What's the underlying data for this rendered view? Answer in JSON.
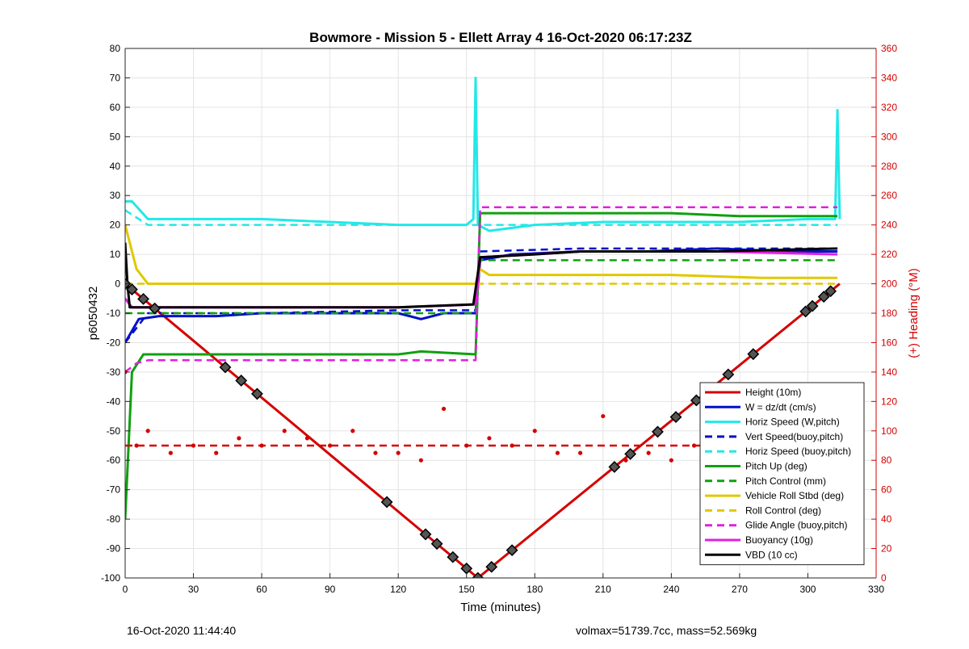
{
  "chart_data": {
    "type": "line",
    "title": "Bowmore - Mission 5 - Ellett Array 4 16-Oct-2020 06:17:23Z",
    "xlabel": "Time (minutes)",
    "ylabel": "p6050432",
    "y2label": "(+) Heading (°M)",
    "xlim": [
      0,
      330
    ],
    "ylim": [
      -100,
      80
    ],
    "y2lim": [
      0,
      360
    ],
    "xticks": [
      "0",
      "30",
      "60",
      "90",
      "120",
      "150",
      "180",
      "210",
      "240",
      "270",
      "300",
      "330"
    ],
    "yticks": [
      "80",
      "70",
      "60",
      "50",
      "40",
      "30",
      "20",
      "10",
      "0",
      "-10",
      "-20",
      "-30",
      "-40",
      "-50",
      "-60",
      "-70",
      "-80",
      "-90",
      "-100"
    ],
    "y2ticks": [
      "360",
      "340",
      "320",
      "300",
      "280",
      "260",
      "240",
      "220",
      "200",
      "180",
      "160",
      "140",
      "120",
      "100",
      "80",
      "60",
      "40",
      "20",
      "0"
    ],
    "grid": true,
    "legend_position": "bottom-right",
    "series": [
      {
        "name": "Height (10m)",
        "color": "#d40000",
        "style": "solid",
        "axis": "left",
        "x": [
          0,
          155,
          314
        ],
        "y": [
          0,
          -100,
          0
        ]
      },
      {
        "name": "W = dz/dt (cm/s)",
        "color": "#0010c8",
        "style": "solid",
        "axis": "left",
        "x": [
          0,
          3,
          6,
          15,
          40,
          60,
          90,
          120,
          130,
          140,
          154,
          156,
          170,
          200,
          230,
          260,
          290,
          313
        ],
        "y": [
          -20,
          -16,
          -12,
          -11,
          -11,
          -10,
          -10,
          -10,
          -12,
          -10,
          -10,
          8,
          10,
          11,
          11,
          12,
          11,
          11
        ]
      },
      {
        "name": "Horiz Speed (W,pitch)",
        "color": "#22e8e8",
        "style": "solid",
        "axis": "left",
        "x": [
          0,
          3,
          10,
          30,
          60,
          90,
          120,
          130,
          150,
          153,
          154,
          155,
          160,
          180,
          210,
          240,
          270,
          300,
          312,
          313,
          314
        ],
        "y": [
          28,
          28,
          22,
          22,
          22,
          21,
          20,
          20,
          20,
          22,
          70,
          20,
          18,
          20,
          21,
          21,
          21,
          22,
          22,
          59,
          22
        ]
      },
      {
        "name": "Vert Speed(buoy,pitch)",
        "color": "#0010c8",
        "style": "dashed",
        "axis": "left",
        "x": [
          0,
          10,
          60,
          120,
          154,
          156,
          200,
          260,
          313
        ],
        "y": [
          -20,
          -10,
          -10,
          -9,
          -9,
          11,
          12,
          12,
          12
        ]
      },
      {
        "name": "Horiz Speed (buoy,pitch)",
        "color": "#22e8e8",
        "style": "dashed",
        "axis": "left",
        "x": [
          0,
          10,
          60,
          120,
          154,
          156,
          200,
          260,
          313
        ],
        "y": [
          25,
          20,
          20,
          20,
          20,
          20,
          20,
          20,
          20
        ]
      },
      {
        "name": "Pitch Up (deg)",
        "color": "#10a010",
        "style": "solid",
        "axis": "left",
        "x": [
          0,
          3,
          8,
          30,
          60,
          90,
          120,
          130,
          154,
          156,
          160,
          200,
          240,
          270,
          313
        ],
        "y": [
          -80,
          -30,
          -24,
          -24,
          -24,
          -24,
          -24,
          -23,
          -24,
          24,
          24,
          24,
          24,
          23,
          23
        ]
      },
      {
        "name": "Pitch Control (mm)",
        "color": "#10a010",
        "style": "dashed",
        "axis": "left",
        "x": [
          0,
          10,
          60,
          120,
          154,
          156,
          200,
          260,
          313
        ],
        "y": [
          -10,
          -10,
          -10,
          -10,
          -10,
          8,
          8,
          8,
          8
        ]
      },
      {
        "name": "Vehicle Roll Stbd (deg)",
        "color": "#e0c800",
        "style": "solid",
        "axis": "left",
        "x": [
          0,
          5,
          10,
          30,
          60,
          90,
          120,
          150,
          154,
          156,
          160,
          200,
          240,
          280,
          313
        ],
        "y": [
          20,
          5,
          0,
          0,
          0,
          0,
          0,
          0,
          0,
          5,
          3,
          3,
          3,
          2,
          2
        ]
      },
      {
        "name": "Roll Control (deg)",
        "color": "#e0c800",
        "style": "dashed",
        "axis": "left",
        "x": [
          0,
          10,
          60,
          120,
          154,
          156,
          200,
          260,
          313
        ],
        "y": [
          0,
          0,
          0,
          0,
          0,
          0,
          0,
          0,
          0
        ]
      },
      {
        "name": "Glide Angle (buoy,pitch)",
        "color": "#e020e0",
        "style": "dashed",
        "axis": "left",
        "x": [
          0,
          5,
          10,
          60,
          120,
          150,
          154,
          156,
          200,
          260,
          313
        ],
        "y": [
          -30,
          -27,
          -26,
          -26,
          -26,
          -26,
          -26,
          26,
          26,
          26,
          26
        ]
      },
      {
        "name": "Buoyancy (10g)",
        "color": "#e020e0",
        "style": "solid",
        "axis": "left",
        "x": [
          0,
          3,
          6,
          60,
          120,
          154,
          156,
          200,
          260,
          313
        ],
        "y": [
          -5,
          -8,
          -8,
          -8,
          -8,
          -7,
          9,
          11,
          11,
          10
        ]
      },
      {
        "name": "VBD (10 cc)",
        "color": "#000000",
        "style": "solid",
        "axis": "left",
        "x": [
          0,
          1,
          2,
          6,
          60,
          120,
          153,
          156,
          180,
          200,
          260,
          313
        ],
        "y": [
          14,
          0,
          -8,
          -8,
          -8,
          -8,
          -7,
          9,
          10,
          11,
          11,
          12
        ]
      },
      {
        "name": "Heading",
        "color": "#d40000",
        "style": "dots",
        "axis": "right",
        "x": [
          0,
          5,
          10,
          20,
          30,
          40,
          50,
          60,
          70,
          80,
          90,
          100,
          110,
          120,
          130,
          140,
          150,
          160,
          170,
          180,
          190,
          200,
          210,
          220,
          230,
          240,
          250,
          260,
          270,
          280,
          290,
          300,
          310
        ],
        "y": [
          140,
          90,
          100,
          85,
          90,
          85,
          95,
          90,
          100,
          95,
          90,
          100,
          85,
          85,
          80,
          115,
          90,
          95,
          90,
          100,
          85,
          85,
          110,
          80,
          85,
          80,
          90,
          100,
          95,
          90,
          100,
          85,
          80
        ]
      },
      {
        "name": "Heading target",
        "color": "#d40000",
        "style": "dashed",
        "axis": "right",
        "x": [
          0,
          314
        ],
        "y": [
          90,
          90
        ]
      }
    ]
  },
  "footer": {
    "date": "16-Oct-2020 11:44:40",
    "stats": "volmax=51739.7cc, mass=52.569kg"
  }
}
